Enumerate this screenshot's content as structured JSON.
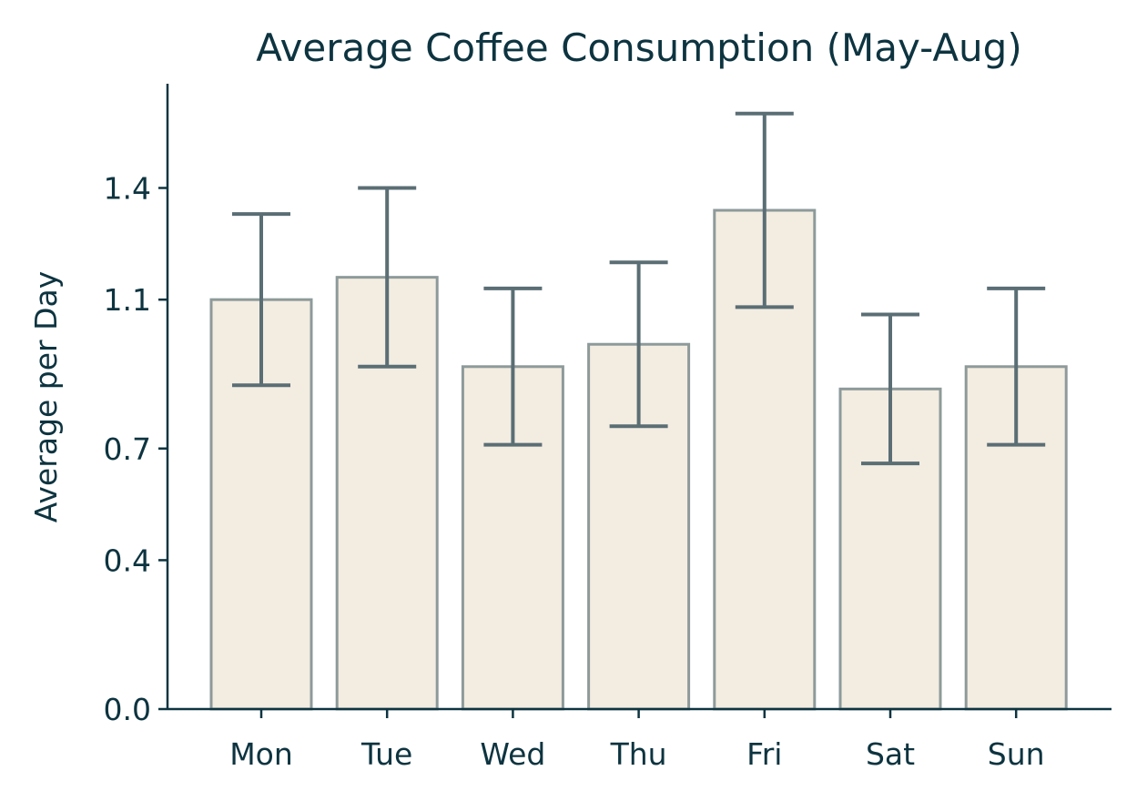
{
  "chart_data": {
    "type": "bar",
    "title": "Average Coffee Consumption (May-Aug)",
    "xlabel": "",
    "ylabel": "Average per Day",
    "categories": [
      "Mon",
      "Tue",
      "Wed",
      "Thu",
      "Fri",
      "Sat",
      "Sun"
    ],
    "values": [
      1.1,
      1.16,
      0.92,
      0.98,
      1.34,
      0.86,
      0.92
    ],
    "error_low": [
      0.87,
      0.92,
      0.71,
      0.76,
      1.08,
      0.66,
      0.71
    ],
    "error_high": [
      1.33,
      1.4,
      1.13,
      1.2,
      1.6,
      1.06,
      1.13
    ],
    "yticks": [
      0.0,
      0.4,
      0.7,
      1.1,
      1.4
    ],
    "ytick_labels": [
      "0.0",
      "0.4",
      "0.7",
      "1.1",
      "1.4"
    ],
    "ylim": [
      0,
      1.68
    ],
    "grid": false,
    "colors": {
      "bar_fill": "#f3ece1",
      "bar_edge": "#8e9a9a",
      "error_bar": "#5a6e74",
      "text": "#0d3440"
    }
  }
}
